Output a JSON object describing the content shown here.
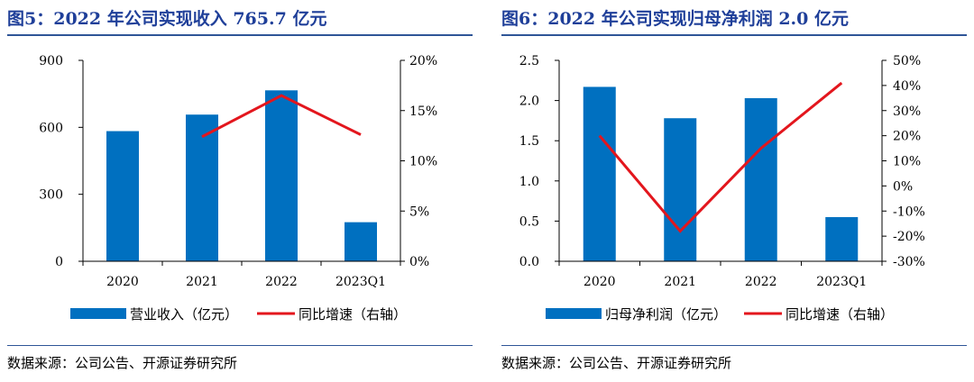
{
  "figures": [
    {
      "title": "图5：2022 年公司实现收入 765.7 亿元",
      "source": "数据来源：公司公告、开源证券研究所",
      "legend": {
        "bar": "营业收入（亿元）",
        "line": "同比增速（右轴）"
      },
      "colors": {
        "bar": "#0070c0",
        "line": "#e3161d"
      }
    },
    {
      "title": "图6：2022 年公司实现归母净利润 2.0 亿元",
      "source": "数据来源：公司公告、开源证券研究所",
      "legend": {
        "bar": "归母净利润（亿元）",
        "line": "同比增速（右轴）"
      },
      "colors": {
        "bar": "#0070c0",
        "line": "#e3161d"
      }
    }
  ],
  "chart_data": [
    {
      "type": "bar",
      "categories": [
        "2020",
        "2021",
        "2022",
        "2023Q1"
      ],
      "series": [
        {
          "name": "营业收入（亿元）",
          "type": "bar",
          "axis": "left",
          "values": [
            583,
            657,
            765.7,
            175
          ]
        },
        {
          "name": "同比增速（右轴）",
          "type": "line",
          "axis": "right",
          "values": [
            null,
            12.4,
            16.5,
            12.6
          ]
        }
      ],
      "y_left": {
        "min": 0,
        "max": 900,
        "ticks": [
          0,
          300,
          600,
          900
        ],
        "tick_labels": [
          "0",
          "300",
          "600",
          "900"
        ]
      },
      "y_right": {
        "min": 0,
        "max": 20,
        "ticks": [
          0,
          5,
          10,
          15,
          20
        ],
        "tick_labels": [
          "0%",
          "5%",
          "10%",
          "15%",
          "20%"
        ]
      }
    },
    {
      "type": "bar",
      "categories": [
        "2020",
        "2021",
        "2022",
        "2023Q1"
      ],
      "series": [
        {
          "name": "归母净利润（亿元）",
          "type": "bar",
          "axis": "left",
          "values": [
            2.17,
            1.78,
            2.03,
            0.55
          ]
        },
        {
          "name": "同比增速（右轴）",
          "type": "line",
          "axis": "right",
          "values": [
            20,
            -18,
            15,
            41
          ]
        }
      ],
      "y_left": {
        "min": 0,
        "max": 2.5,
        "ticks": [
          0,
          0.5,
          1.0,
          1.5,
          2.0,
          2.5
        ],
        "tick_labels": [
          "0.0",
          "0.5",
          "1.0",
          "1.5",
          "2.0",
          "2.5"
        ]
      },
      "y_right": {
        "min": -30,
        "max": 50,
        "ticks": [
          -30,
          -20,
          -10,
          0,
          10,
          20,
          30,
          40,
          50
        ],
        "tick_labels": [
          "-30%",
          "-20%",
          "-10%",
          "0%",
          "10%",
          "20%",
          "30%",
          "40%",
          "50%"
        ]
      }
    }
  ]
}
